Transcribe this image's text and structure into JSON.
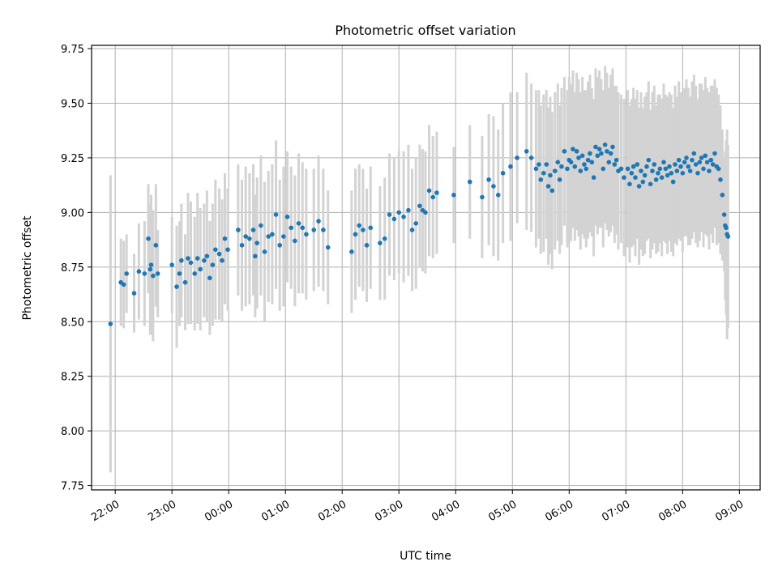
{
  "chart_data": {
    "type": "scatter",
    "title": "Photometric offset variation",
    "xlabel": "UTC time",
    "ylabel": "Photometric offset",
    "x_axis_kind": "time",
    "xlim": [
      "21:35",
      "09:22"
    ],
    "ylim": [
      7.73,
      9.765
    ],
    "x_ticks": [
      "22:00",
      "23:00",
      "00:00",
      "01:00",
      "02:00",
      "03:00",
      "04:00",
      "05:00",
      "06:00",
      "07:00",
      "08:00",
      "09:00"
    ],
    "y_ticks": [
      "7.75",
      "8.00",
      "8.25",
      "8.50",
      "8.75",
      "9.00",
      "9.25",
      "9.50",
      "9.75"
    ],
    "grid": true,
    "colors": {
      "points": "#1f77b4",
      "errorbars": "#d3d3d3",
      "grid": "#b0b0b0"
    },
    "series": [
      {
        "x": [
          "21:55",
          "22:06",
          "22:09",
          "22:12",
          "22:20",
          "22:25",
          "22:31",
          "22:35",
          "22:37",
          "22:38",
          "22:40",
          "22:43",
          "22:45",
          "23:00",
          "23:05",
          "23:08",
          "23:10",
          "23:14",
          "23:17",
          "23:20",
          "23:24",
          "23:27",
          "23:30",
          "23:34",
          "23:37",
          "23:40",
          "23:43",
          "23:46",
          "23:50",
          "23:53",
          "23:56",
          "23:59",
          "00:10",
          "00:14",
          "00:18",
          "00:22",
          "00:26",
          "00:28",
          "00:30",
          "00:34",
          "00:38",
          "00:42",
          "00:46",
          "00:50",
          "00:54",
          "00:58",
          "01:02",
          "01:06",
          "01:10",
          "01:14",
          "01:18",
          "01:22",
          "01:30",
          "01:35",
          "01:40",
          "01:45",
          "02:10",
          "02:14",
          "02:18",
          "02:22",
          "02:26",
          "02:30",
          "02:40",
          "02:45",
          "02:50",
          "02:55",
          "03:00",
          "03:05",
          "03:10",
          "03:14",
          "03:18",
          "03:22",
          "03:25",
          "03:28",
          "03:32",
          "03:36",
          "03:40",
          "03:58",
          "04:15",
          "04:28",
          "04:35",
          "04:40",
          "04:45",
          "04:50",
          "04:58",
          "05:05",
          "05:15",
          "05:20",
          "05:25",
          "05:28",
          "05:30",
          "05:33",
          "05:36",
          "05:38",
          "05:40",
          "05:42",
          "05:45",
          "05:48",
          "05:50",
          "05:52",
          "05:55",
          "05:58",
          "06:00",
          "06:02",
          "06:04",
          "06:06",
          "06:08",
          "06:10",
          "06:12",
          "06:14",
          "06:16",
          "06:18",
          "06:20",
          "06:22",
          "06:24",
          "06:26",
          "06:28",
          "06:30",
          "06:32",
          "06:34",
          "06:36",
          "06:38",
          "06:40",
          "06:42",
          "06:44",
          "06:46",
          "06:48",
          "06:50",
          "06:52",
          "06:55",
          "06:58",
          "07:02",
          "07:04",
          "07:06",
          "07:08",
          "07:10",
          "07:12",
          "07:14",
          "07:16",
          "07:18",
          "07:20",
          "07:22",
          "07:24",
          "07:26",
          "07:28",
          "07:30",
          "07:32",
          "07:34",
          "07:36",
          "07:38",
          "07:40",
          "07:42",
          "07:44",
          "07:46",
          "07:48",
          "07:50",
          "07:52",
          "07:54",
          "07:56",
          "07:58",
          "08:00",
          "08:02",
          "08:04",
          "08:06",
          "08:08",
          "08:10",
          "08:12",
          "08:14",
          "08:16",
          "08:18",
          "08:20",
          "08:22",
          "08:24",
          "08:26",
          "08:28",
          "08:30",
          "08:32",
          "08:34",
          "08:36",
          "08:38",
          "08:40",
          "08:42",
          "08:44",
          "08:45",
          "08:46",
          "08:47",
          "08:48"
        ],
        "y": [
          8.49,
          8.68,
          8.67,
          8.72,
          8.63,
          8.73,
          8.72,
          8.88,
          8.74,
          8.76,
          8.71,
          8.85,
          8.72,
          8.76,
          8.66,
          8.72,
          8.78,
          8.68,
          8.79,
          8.77,
          8.72,
          8.79,
          8.74,
          8.78,
          8.8,
          8.7,
          8.76,
          8.83,
          8.81,
          8.78,
          8.88,
          8.83,
          8.92,
          8.85,
          8.89,
          8.88,
          8.92,
          8.8,
          8.86,
          8.94,
          8.82,
          8.89,
          8.9,
          8.99,
          8.85,
          8.89,
          8.98,
          8.93,
          8.87,
          8.95,
          8.93,
          8.9,
          8.92,
          8.96,
          8.92,
          8.84,
          8.82,
          8.9,
          8.94,
          8.92,
          8.85,
          8.93,
          8.86,
          8.88,
          8.99,
          8.97,
          9.0,
          8.98,
          9.01,
          8.92,
          8.95,
          9.03,
          9.01,
          9.0,
          9.1,
          9.07,
          9.09,
          9.08,
          9.14,
          9.07,
          9.15,
          9.12,
          9.08,
          9.18,
          9.21,
          9.25,
          9.28,
          9.25,
          9.2,
          9.22,
          9.15,
          9.18,
          9.22,
          9.12,
          9.17,
          9.1,
          9.19,
          9.23,
          9.15,
          9.21,
          9.28,
          9.2,
          9.24,
          9.23,
          9.29,
          9.21,
          9.28,
          9.25,
          9.19,
          9.26,
          9.22,
          9.2,
          9.24,
          9.27,
          9.23,
          9.16,
          9.3,
          9.26,
          9.29,
          9.27,
          9.2,
          9.31,
          9.28,
          9.23,
          9.27,
          9.3,
          9.22,
          9.24,
          9.19,
          9.2,
          9.16,
          9.2,
          9.13,
          9.18,
          9.21,
          9.16,
          9.22,
          9.12,
          9.19,
          9.14,
          9.17,
          9.21,
          9.24,
          9.13,
          9.19,
          9.22,
          9.15,
          9.18,
          9.2,
          9.16,
          9.23,
          9.2,
          9.17,
          9.21,
          9.18,
          9.14,
          9.22,
          9.19,
          9.24,
          9.21,
          9.18,
          9.23,
          9.25,
          9.21,
          9.19,
          9.24,
          9.27,
          9.22,
          9.18,
          9.23,
          9.25,
          9.2,
          9.26,
          9.23,
          9.19,
          9.24,
          9.22,
          9.27,
          9.21,
          9.2,
          9.15,
          9.08,
          8.99,
          8.94,
          8.93,
          8.9,
          8.89
        ],
        "err": [
          0.68,
          0.2,
          0.2,
          0.18,
          0.18,
          0.22,
          0.24,
          0.25,
          0.3,
          0.32,
          0.3,
          0.28,
          0.2,
          0.22,
          0.28,
          0.24,
          0.26,
          0.22,
          0.3,
          0.28,
          0.26,
          0.3,
          0.28,
          0.26,
          0.3,
          0.26,
          0.28,
          0.32,
          0.3,
          0.28,
          0.3,
          0.28,
          0.3,
          0.3,
          0.32,
          0.3,
          0.3,
          0.28,
          0.3,
          0.32,
          0.32,
          0.3,
          0.32,
          0.34,
          0.3,
          0.32,
          0.3,
          0.28,
          0.3,
          0.32,
          0.3,
          0.3,
          0.28,
          0.3,
          0.28,
          0.26,
          0.28,
          0.3,
          0.28,
          0.28,
          0.26,
          0.28,
          0.26,
          0.28,
          0.28,
          0.28,
          0.28,
          0.3,
          0.3,
          0.28,
          0.3,
          0.28,
          0.28,
          0.28,
          0.3,
          0.28,
          0.28,
          0.22,
          0.26,
          0.28,
          0.3,
          0.32,
          0.3,
          0.32,
          0.34,
          0.3,
          0.36,
          0.34,
          0.36,
          0.34,
          0.34,
          0.36,
          0.34,
          0.36,
          0.36,
          0.36,
          0.36,
          0.36,
          0.34,
          0.36,
          0.34,
          0.36,
          0.38,
          0.36,
          0.36,
          0.34,
          0.36,
          0.36,
          0.36,
          0.36,
          0.34,
          0.36,
          0.36,
          0.36,
          0.34,
          0.36,
          0.36,
          0.36,
          0.36,
          0.34,
          0.36,
          0.36,
          0.36,
          0.34,
          0.36,
          0.36,
          0.36,
          0.34,
          0.36,
          0.34,
          0.36,
          0.36,
          0.36,
          0.34,
          0.36,
          0.36,
          0.34,
          0.36,
          0.36,
          0.34,
          0.36,
          0.34,
          0.36,
          0.34,
          0.36,
          0.36,
          0.34,
          0.36,
          0.34,
          0.36,
          0.36,
          0.34,
          0.36,
          0.34,
          0.36,
          0.34,
          0.36,
          0.34,
          0.36,
          0.34,
          0.36,
          0.34,
          0.36,
          0.36,
          0.34,
          0.36,
          0.36,
          0.36,
          0.34,
          0.36,
          0.34,
          0.36,
          0.36,
          0.34,
          0.36,
          0.34,
          0.36,
          0.34,
          0.36,
          0.34,
          0.34,
          0.3,
          0.26,
          0.34,
          0.4,
          0.48,
          0.42
        ]
      }
    ]
  }
}
